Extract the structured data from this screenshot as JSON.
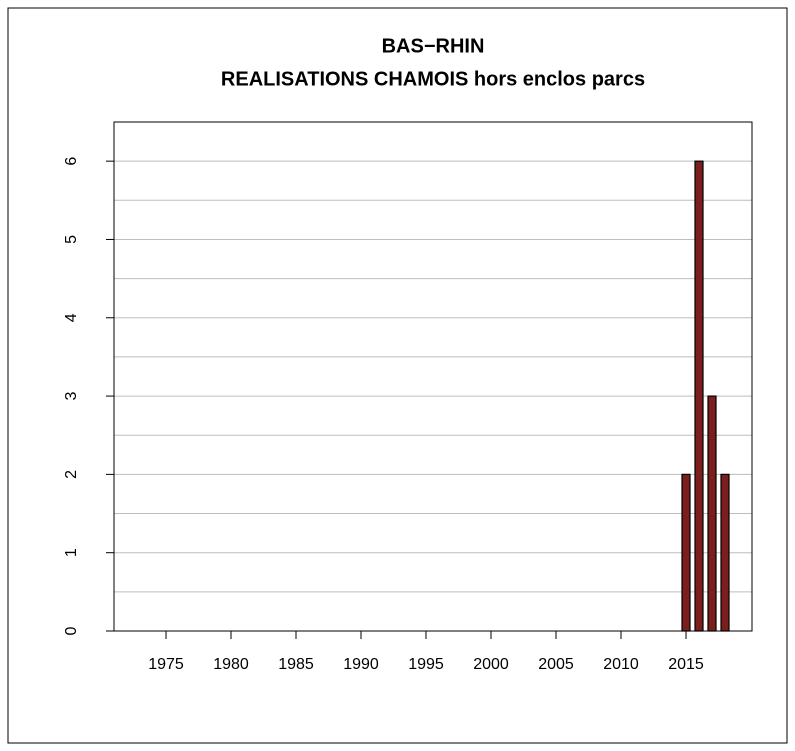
{
  "chart_data": {
    "type": "bar",
    "title": [
      "BAS−RHIN",
      "REALISATIONS CHAMOIS hors enclos parcs"
    ],
    "categories": [
      null,
      null,
      "1975",
      null,
      null,
      null,
      null,
      "1980",
      null,
      null,
      null,
      null,
      "1985",
      null,
      null,
      null,
      null,
      "1990",
      null,
      null,
      null,
      null,
      "1995",
      null,
      null,
      null,
      null,
      "2000",
      null,
      null,
      null,
      null,
      "2005",
      null,
      null,
      null,
      null,
      "2010",
      null,
      null,
      null,
      null,
      "2015",
      null,
      null,
      null
    ],
    "values": [
      0,
      0,
      0,
      0,
      0,
      0,
      0,
      0,
      0,
      0,
      0,
      0,
      0,
      0,
      0,
      0,
      0,
      0,
      0,
      0,
      0,
      0,
      0,
      0,
      0,
      0,
      0,
      0,
      0,
      0,
      0,
      0,
      0,
      0,
      0,
      0,
      0,
      0,
      0,
      0,
      0,
      0,
      2,
      6,
      3,
      2
    ],
    "color": "#7b1e1e",
    "ylim": [
      0,
      6.5
    ],
    "yticks": [
      0,
      1,
      2,
      3,
      4,
      5,
      6
    ],
    "minor_yticks": [
      0.5,
      1.5,
      2.5,
      3.5,
      4.5,
      5.5,
      6.5
    ],
    "grid": true
  }
}
